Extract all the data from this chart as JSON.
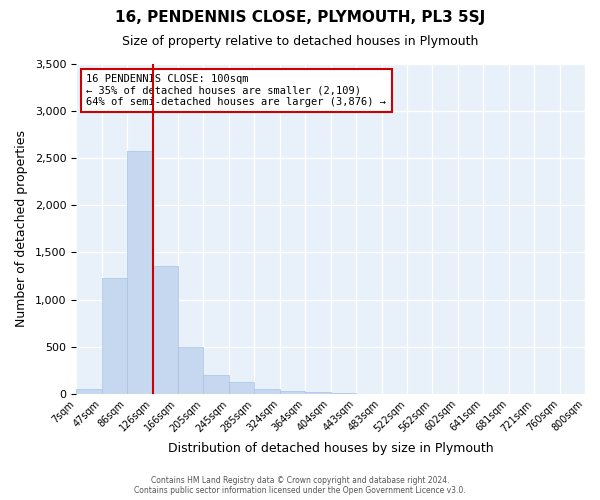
{
  "title": "16, PENDENNIS CLOSE, PLYMOUTH, PL3 5SJ",
  "subtitle": "Size of property relative to detached houses in Plymouth",
  "xlabel": "Distribution of detached houses by size in Plymouth",
  "ylabel": "Number of detached properties",
  "bar_color": "#c5d8f0",
  "bar_edgecolor": "#a8c4e0",
  "background_color": "#e8f0fa",
  "grid_color": "#ffffff",
  "bin_labels": [
    "7sqm",
    "47sqm",
    "86sqm",
    "126sqm",
    "166sqm",
    "205sqm",
    "245sqm",
    "285sqm",
    "324sqm",
    "364sqm",
    "404sqm",
    "443sqm",
    "483sqm",
    "522sqm",
    "562sqm",
    "602sqm",
    "641sqm",
    "681sqm",
    "721sqm",
    "760sqm",
    "800sqm"
  ],
  "bar_heights": [
    50,
    1230,
    2580,
    1360,
    500,
    200,
    120,
    50,
    35,
    20,
    5,
    2,
    2,
    0,
    0,
    0,
    0,
    0,
    0,
    0
  ],
  "ylim": [
    0,
    3500
  ],
  "yticks": [
    0,
    500,
    1000,
    1500,
    2000,
    2500,
    3000,
    3500
  ],
  "vline_color": "#cc0000",
  "annotation_text": "16 PENDENNIS CLOSE: 100sqm\n← 35% of detached houses are smaller (2,109)\n64% of semi-detached houses are larger (3,876) →",
  "annotation_box_edgecolor": "#cc0000",
  "footer_line1": "Contains HM Land Registry data © Crown copyright and database right 2024.",
  "footer_line2": "Contains public sector information licensed under the Open Government Licence v3.0."
}
